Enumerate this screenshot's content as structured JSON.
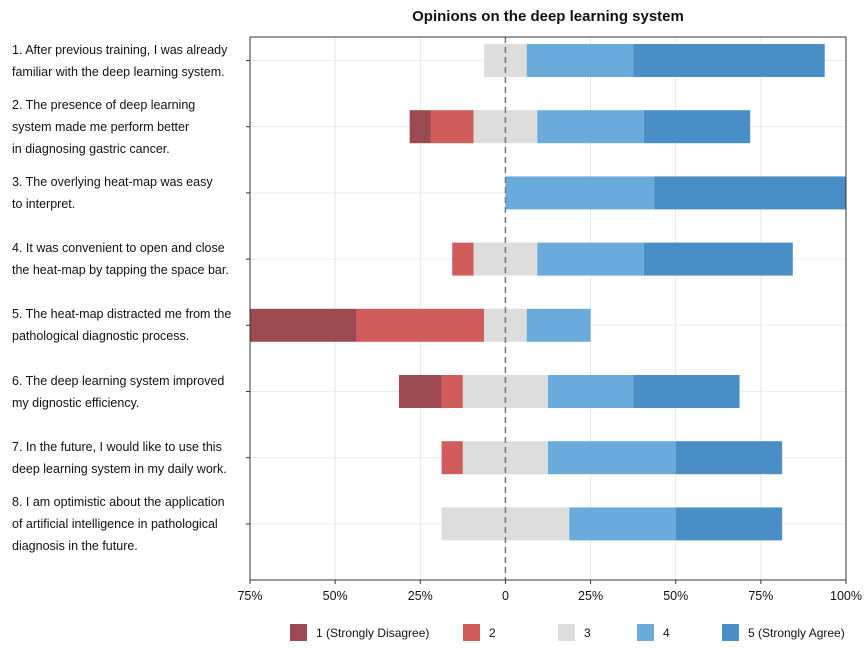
{
  "chart_data": {
    "type": "bar",
    "subtype": "diverging-stacked-likert",
    "title": "Opinions on the deep learning system",
    "xlabel": "",
    "ylabel": "",
    "xlim": [
      -75,
      100
    ],
    "x_ticks": [
      -75,
      -50,
      -25,
      0,
      25,
      50,
      75,
      100
    ],
    "x_tick_labels": [
      "75%",
      "50%",
      "25%",
      "0",
      "25%",
      "50%",
      "75%",
      "100%"
    ],
    "grid": true,
    "legend_position": "bottom",
    "categories": [
      "1. After previous training, I was already\nfamiliar with the deep learning system.",
      "2. The presence of deep learning\nsystem made me perform better\nin diagnosing gastric cancer.",
      "3. The overlying heat-map was easy\nto interpret.",
      "4. It was convenient to open and close\nthe  heat-map by tapping the space bar.",
      "5. The heat-map distracted me from the\npathological diagnostic process.",
      "6. The deep learning system improved\nmy dignostic efficiency.",
      "7. In the future, I would like to use this\ndeep learning system in my daily work.",
      "8. I am optimistic about the application\nof artificial intelligence in pathological\ndiagnosis in the future."
    ],
    "series": [
      {
        "name": "1 (Strongly Disagree)",
        "color": "#9b4a52",
        "values": [
          0,
          6.25,
          0,
          0,
          31.25,
          12.5,
          0,
          0
        ]
      },
      {
        "name": "2",
        "color": "#d05c5c",
        "values": [
          0,
          12.5,
          0,
          6.25,
          37.5,
          6.25,
          6.25,
          0
        ]
      },
      {
        "name": "3",
        "color": "#dddddd",
        "values": [
          12.5,
          18.75,
          0,
          18.75,
          12.5,
          25,
          25,
          37.5
        ]
      },
      {
        "name": "4",
        "color": "#6aabdc",
        "values": [
          31.25,
          31.25,
          43.75,
          31.25,
          18.75,
          25,
          37.5,
          31.25
        ]
      },
      {
        "name": "5 (Strongly Agree)",
        "color": "#4a8ec8",
        "values": [
          56.25,
          31.25,
          56.25,
          43.75,
          0,
          31.25,
          31.25,
          31.25
        ]
      }
    ]
  }
}
